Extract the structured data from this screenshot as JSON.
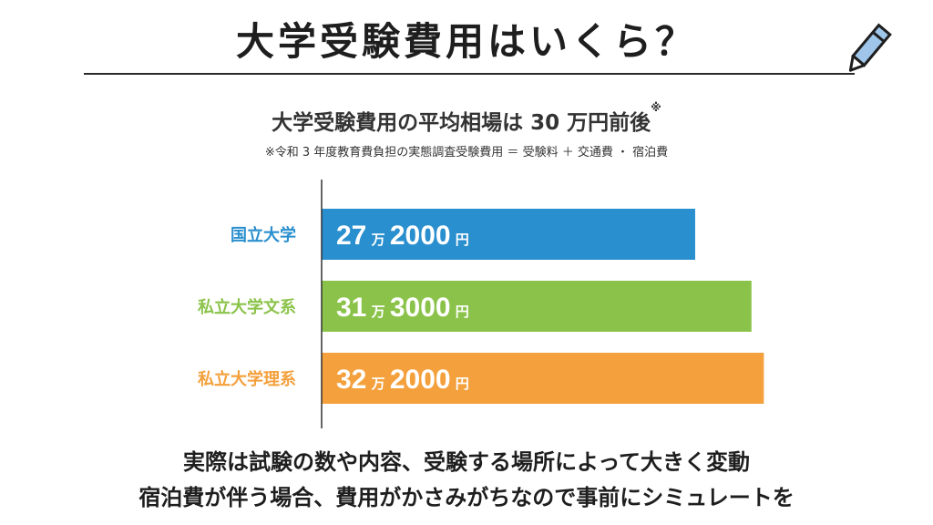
{
  "title": "大学受験費用はいくら？",
  "subtitle": "大学受験費用の平均相場は 30 万円前後",
  "subtitle_mark": "※",
  "footnote": "※令和 3 年度教育費負担の実態調査受験費用 ＝ 受験料 ＋ 交通費 ・ 宿泊費",
  "chart_data": {
    "type": "bar",
    "orientation": "horizontal",
    "unit": "円",
    "categories": [
      "国立大学",
      "私立大学文系",
      "私立大学理系"
    ],
    "values": [
      272000,
      313000,
      322000
    ],
    "value_labels": [
      {
        "man": "27",
        "rest": "2000",
        "man_unit": "万",
        "yen": "円"
      },
      {
        "man": "31",
        "rest": "3000",
        "man_unit": "万",
        "yen": "円"
      },
      {
        "man": "32",
        "rest": "2000",
        "man_unit": "万",
        "yen": "円"
      }
    ],
    "colors": [
      "#2a8fce",
      "#8bc34a",
      "#f4a03c"
    ],
    "xlim": [
      0,
      345000
    ],
    "grid": false
  },
  "bottom_text": {
    "line1": "実際は試験の数や内容、受験する場所によって大きく変動",
    "line2": "宿泊費が伴う場合、費用がかさみがちなので事前にシミュレートを"
  },
  "icons": {
    "pencil": "pencil-icon"
  }
}
